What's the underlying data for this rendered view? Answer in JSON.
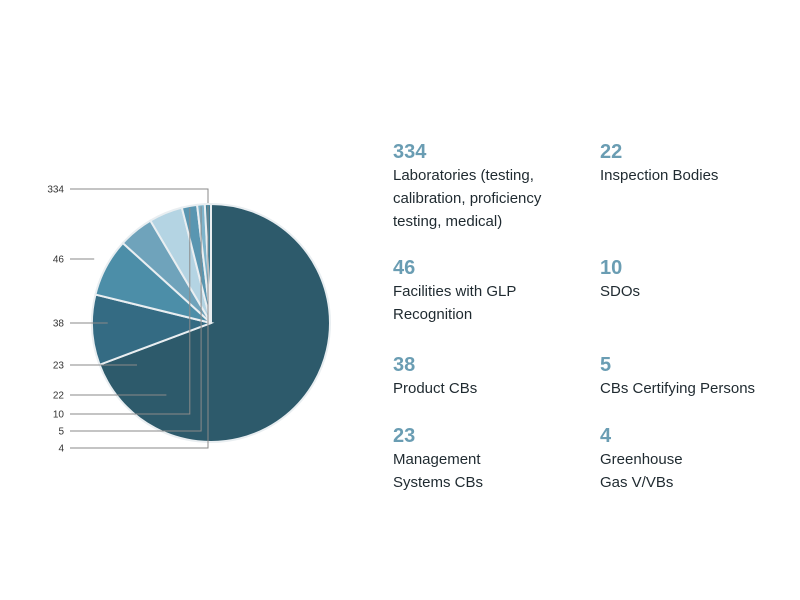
{
  "chart_data": {
    "type": "pie",
    "start_angle_deg": 0,
    "slices": [
      {
        "label": "Laboratories (testing,\ncalibration, proficiency\ntesting, medical)",
        "value": 334,
        "color": "#2d5a6b"
      },
      {
        "label": "Facilities with GLP\nRecognition",
        "value": 46,
        "color": "#346b83"
      },
      {
        "label": "Product CBs",
        "value": 38,
        "color": "#4c8ea8"
      },
      {
        "label": "Management\nSystems CBs",
        "value": 23,
        "color": "#6fa3bb"
      },
      {
        "label": "Inspection Bodies",
        "value": 22,
        "color": "#b4d4e3"
      },
      {
        "label": "SDOs",
        "value": 10,
        "color": "#5996b1"
      },
      {
        "label": "CBs Certifying Persons",
        "value": 5,
        "color": "#7eb4cb"
      },
      {
        "label": "Greenhouse\nGas V/VBs",
        "value": 4,
        "color": "#3e7f97"
      }
    ],
    "callout_labels": [
      "334",
      "46",
      "38",
      "23",
      "22",
      "10",
      "5",
      "4"
    ]
  },
  "stats": [
    {
      "value": "334",
      "label": "Laboratories (testing,\ncalibration, proficiency\ntesting, medical)"
    },
    {
      "value": "22",
      "label": "Inspection Bodies"
    },
    {
      "value": "46",
      "label": "Facilities with GLP\nRecognition"
    },
    {
      "value": "10",
      "label": "SDOs"
    },
    {
      "value": "38",
      "label": "Product CBs"
    },
    {
      "value": "5",
      "label": "CBs Certifying Persons"
    },
    {
      "value": "23",
      "label": "Management\nSystems CBs"
    },
    {
      "value": "4",
      "label": "Greenhouse\nGas V/VBs"
    }
  ]
}
